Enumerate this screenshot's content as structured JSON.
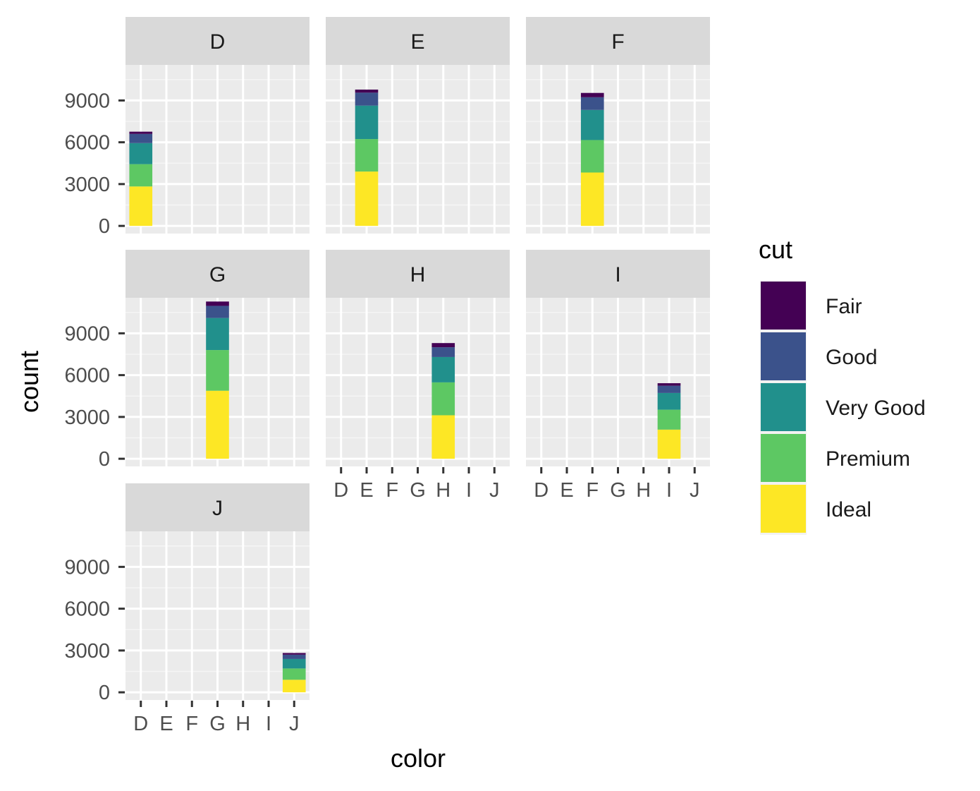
{
  "chart_data": {
    "type": "bar",
    "stacked": true,
    "facet_by": "color",
    "xlabel": "color",
    "ylabel": "count",
    "categories": [
      "D",
      "E",
      "F",
      "G",
      "H",
      "I",
      "J"
    ],
    "yticks": [
      0,
      3000,
      6000,
      9000
    ],
    "ylim": [
      -550,
      11550
    ],
    "grid": true,
    "legend": {
      "title": "cut",
      "position": "right",
      "entries": [
        "Fair",
        "Good",
        "Very Good",
        "Premium",
        "Ideal"
      ]
    },
    "colors": {
      "Fair": "#440154",
      "Good": "#3b528b",
      "Very Good": "#21908c",
      "Premium": "#5dc863",
      "Ideal": "#fde725"
    },
    "panel_background": "#ebebeb",
    "strip_background": "#d9d9d9",
    "panels": [
      {
        "label": "D",
        "category": "D",
        "values": {
          "Ideal": 2830,
          "Premium": 1600,
          "Very Good": 1510,
          "Good": 660,
          "Fair": 160
        }
      },
      {
        "label": "E",
        "category": "E",
        "values": {
          "Ideal": 3900,
          "Premium": 2330,
          "Very Good": 2400,
          "Good": 930,
          "Fair": 220
        }
      },
      {
        "label": "F",
        "category": "F",
        "values": {
          "Ideal": 3830,
          "Premium": 2330,
          "Very Good": 2160,
          "Good": 910,
          "Fair": 310
        }
      },
      {
        "label": "G",
        "category": "G",
        "values": {
          "Ideal": 4880,
          "Premium": 2920,
          "Very Good": 2300,
          "Good": 870,
          "Fair": 310
        }
      },
      {
        "label": "H",
        "category": "H",
        "values": {
          "Ideal": 3120,
          "Premium": 2360,
          "Very Good": 1820,
          "Good": 700,
          "Fair": 300
        }
      },
      {
        "label": "I",
        "category": "I",
        "values": {
          "Ideal": 2090,
          "Premium": 1430,
          "Very Good": 1200,
          "Good": 520,
          "Fair": 180
        }
      },
      {
        "label": "J",
        "category": "J",
        "values": {
          "Ideal": 900,
          "Premium": 810,
          "Very Good": 680,
          "Good": 310,
          "Fair": 120
        }
      }
    ]
  }
}
